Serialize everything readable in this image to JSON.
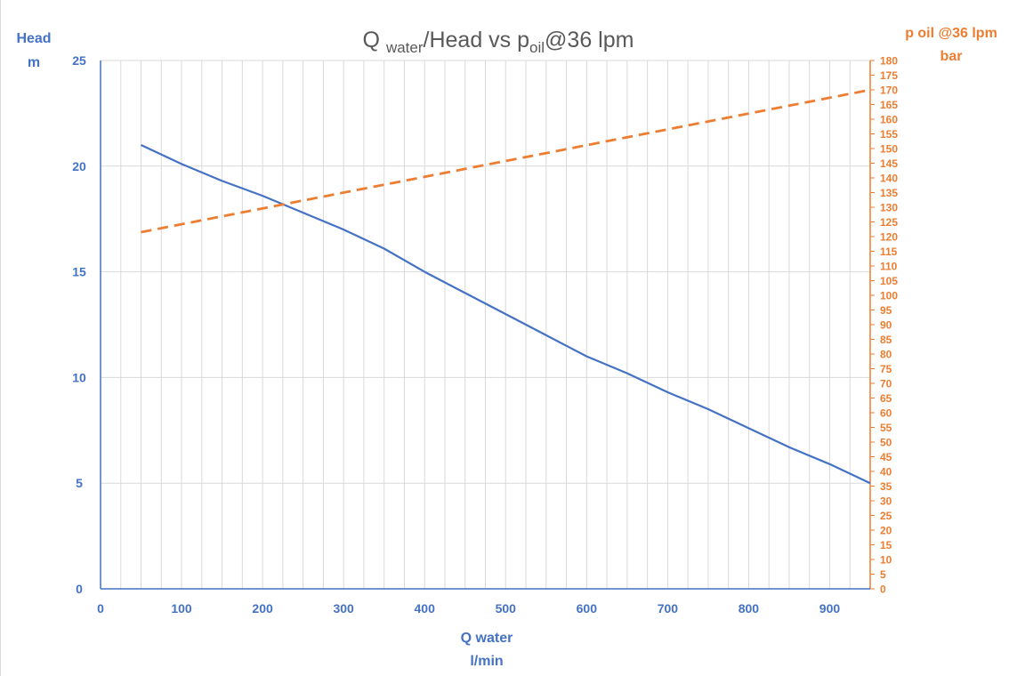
{
  "chart_data": {
    "type": "line",
    "title": {
      "main_q": "Q",
      "main_sub_water": "water",
      "main_rest": "/Head vs p",
      "main_sub_oil": "oil",
      "main_tail": "@36 lpm"
    },
    "xlabel": [
      "Q water",
      "l/min"
    ],
    "ylabel_left": [
      "Head",
      "m"
    ],
    "ylabel_right": [
      "p oil @36 lpm",
      "bar"
    ],
    "x_ticks": [
      0,
      100,
      200,
      300,
      400,
      500,
      600,
      700,
      800,
      900
    ],
    "xlim": [
      0,
      950
    ],
    "y_left_ticks": [
      0,
      5,
      10,
      15,
      20,
      25
    ],
    "ylim_left": [
      0,
      25
    ],
    "y_right_ticks": [
      0,
      5,
      10,
      15,
      20,
      25,
      30,
      35,
      40,
      45,
      50,
      55,
      60,
      65,
      70,
      75,
      80,
      85,
      90,
      95,
      100,
      105,
      110,
      115,
      120,
      125,
      130,
      135,
      140,
      145,
      150,
      155,
      160,
      165,
      170,
      175,
      180
    ],
    "ylim_right": [
      0,
      180
    ],
    "grid": {
      "vertical_minor_step": 25,
      "horizontal_major": true
    },
    "colors": {
      "left_axis": "#4472c4",
      "right_axis": "#ed7d31",
      "grid": "#d9d9d9",
      "title": "#595959"
    },
    "series": [
      {
        "axis": "left",
        "style": "solid",
        "x": [
          50,
          100,
          150,
          200,
          250,
          300,
          350,
          400,
          450,
          500,
          550,
          600,
          650,
          700,
          750,
          800,
          850,
          900,
          950
        ],
        "y": [
          21,
          20.1,
          19.3,
          18.6,
          17.8,
          17.0,
          16.1,
          15.0,
          14.0,
          13.0,
          12.0,
          11.0,
          10.2,
          9.3,
          8.5,
          7.6,
          6.7,
          5.9,
          5.0
        ]
      },
      {
        "axis": "right",
        "style": "dashed",
        "x": [
          50,
          950
        ],
        "y": [
          121.5,
          170
        ]
      }
    ]
  }
}
